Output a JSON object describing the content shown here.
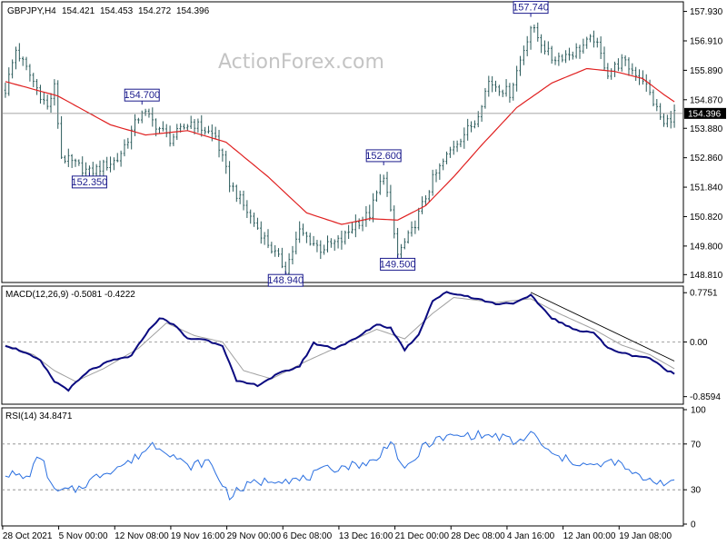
{
  "watermark": "ActionForex.com",
  "colors": {
    "candle": "#2a5a5a",
    "ma": "#e02020",
    "macd": "#0a0a80",
    "signal": "#a0a0a0",
    "rsi": "#2a6fe0",
    "annotation": "#1a1a8c",
    "trendline": "#000000",
    "grid": "#888888"
  },
  "chart_data": [
    {
      "type": "candlestick",
      "title": "GBPJPY,H4",
      "ohlc_header": [
        "154.421",
        "154.453",
        "154.272",
        "154.396"
      ],
      "current_price": 154.396,
      "current_price_label": "154.396",
      "ylim": [
        148.6,
        158.2
      ],
      "yticks": [
        148.81,
        149.8,
        150.82,
        151.84,
        152.86,
        153.88,
        154.87,
        155.89,
        156.91,
        157.93
      ],
      "ytick_labels": [
        "148.810",
        "149.800",
        "150.820",
        "151.840",
        "152.860",
        "153.880",
        "154.870",
        "155.890",
        "156.910",
        "157.930"
      ],
      "annotations": [
        {
          "label": "154.700",
          "value": 154.7,
          "bar": 39
        },
        {
          "label": "152.350",
          "value": 152.35,
          "bar": 24
        },
        {
          "label": "152.600",
          "value": 152.6,
          "bar": 108
        },
        {
          "label": "148.940",
          "value": 148.94,
          "bar": 80
        },
        {
          "label": "149.500",
          "value": 149.5,
          "bar": 112
        },
        {
          "label": "157.740",
          "value": 157.74,
          "bar": 150
        }
      ],
      "price_knots": [
        [
          0,
          155.2
        ],
        [
          3,
          156.6
        ],
        [
          8,
          155.5
        ],
        [
          12,
          154.6
        ],
        [
          14,
          155.3
        ],
        [
          16,
          152.9
        ],
        [
          24,
          152.35
        ],
        [
          32,
          152.8
        ],
        [
          39,
          154.5
        ],
        [
          47,
          153.5
        ],
        [
          53,
          154.1
        ],
        [
          60,
          153.6
        ],
        [
          64,
          152.0
        ],
        [
          70,
          150.8
        ],
        [
          76,
          149.7
        ],
        [
          80,
          149.0
        ],
        [
          84,
          150.3
        ],
        [
          90,
          149.7
        ],
        [
          96,
          150.0
        ],
        [
          100,
          150.6
        ],
        [
          104,
          150.9
        ],
        [
          108,
          152.3
        ],
        [
          111,
          150.2
        ],
        [
          112,
          149.5
        ],
        [
          116,
          150.3
        ],
        [
          122,
          152.1
        ],
        [
          128,
          153.3
        ],
        [
          134,
          154.1
        ],
        [
          138,
          155.5
        ],
        [
          144,
          155.1
        ],
        [
          150,
          157.4
        ],
        [
          156,
          156.3
        ],
        [
          162,
          156.5
        ],
        [
          168,
          157.0
        ],
        [
          172,
          155.8
        ],
        [
          176,
          156.2
        ],
        [
          182,
          155.6
        ],
        [
          188,
          154.0
        ],
        [
          191,
          154.4
        ]
      ],
      "ma_knots": [
        [
          0,
          155.5
        ],
        [
          15,
          155.0
        ],
        [
          30,
          154.0
        ],
        [
          40,
          153.65
        ],
        [
          52,
          153.8
        ],
        [
          63,
          153.4
        ],
        [
          75,
          152.2
        ],
        [
          86,
          150.95
        ],
        [
          96,
          150.55
        ],
        [
          104,
          150.75
        ],
        [
          112,
          150.7
        ],
        [
          120,
          151.2
        ],
        [
          128,
          152.2
        ],
        [
          136,
          153.3
        ],
        [
          146,
          154.6
        ],
        [
          156,
          155.45
        ],
        [
          166,
          155.95
        ],
        [
          174,
          155.85
        ],
        [
          182,
          155.6
        ],
        [
          188,
          155.05
        ],
        [
          191,
          154.8
        ]
      ],
      "series": [
        {
          "name": "GBPJPY,H4",
          "kind": "candles"
        },
        {
          "name": "",
          "kind": "moving-average"
        }
      ]
    },
    {
      "type": "line",
      "title": "MACD(12,26,9) -0.5081 -0.4222",
      "ylim": [
        -0.95,
        0.85
      ],
      "yticks": [
        0.7751,
        0.0,
        -0.8594
      ],
      "ytick_labels": [
        "0.7751",
        "0.00",
        "-0.8594"
      ],
      "macd_knots": [
        [
          0,
          -0.05
        ],
        [
          5,
          -0.15
        ],
        [
          10,
          -0.3
        ],
        [
          14,
          -0.62
        ],
        [
          18,
          -0.75
        ],
        [
          24,
          -0.45
        ],
        [
          30,
          -0.3
        ],
        [
          36,
          -0.22
        ],
        [
          40,
          0.12
        ],
        [
          44,
          0.38
        ],
        [
          48,
          0.28
        ],
        [
          52,
          0.05
        ],
        [
          56,
          0.05
        ],
        [
          62,
          -0.05
        ],
        [
          66,
          -0.62
        ],
        [
          72,
          -0.68
        ],
        [
          78,
          -0.5
        ],
        [
          84,
          -0.38
        ],
        [
          88,
          -0.02
        ],
        [
          94,
          -0.1
        ],
        [
          100,
          0.05
        ],
        [
          106,
          0.28
        ],
        [
          110,
          0.22
        ],
        [
          114,
          -0.12
        ],
        [
          118,
          0.12
        ],
        [
          122,
          0.65
        ],
        [
          126,
          0.78
        ],
        [
          132,
          0.72
        ],
        [
          140,
          0.6
        ],
        [
          146,
          0.62
        ],
        [
          150,
          0.73
        ],
        [
          156,
          0.38
        ],
        [
          162,
          0.2
        ],
        [
          168,
          0.15
        ],
        [
          172,
          -0.1
        ],
        [
          178,
          -0.2
        ],
        [
          184,
          -0.25
        ],
        [
          188,
          -0.42
        ],
        [
          191,
          -0.5
        ]
      ],
      "signal_knots": [
        [
          0,
          -0.05
        ],
        [
          8,
          -0.2
        ],
        [
          14,
          -0.45
        ],
        [
          20,
          -0.62
        ],
        [
          28,
          -0.42
        ],
        [
          38,
          -0.1
        ],
        [
          46,
          0.3
        ],
        [
          54,
          0.1
        ],
        [
          62,
          0.0
        ],
        [
          68,
          -0.45
        ],
        [
          76,
          -0.58
        ],
        [
          86,
          -0.3
        ],
        [
          96,
          -0.05
        ],
        [
          106,
          0.2
        ],
        [
          114,
          0.05
        ],
        [
          122,
          0.45
        ],
        [
          128,
          0.7
        ],
        [
          140,
          0.62
        ],
        [
          150,
          0.68
        ],
        [
          158,
          0.45
        ],
        [
          168,
          0.2
        ],
        [
          176,
          -0.05
        ],
        [
          184,
          -0.2
        ],
        [
          191,
          -0.42
        ]
      ],
      "trendline": [
        [
          150,
          0.78
        ],
        [
          191,
          -0.3
        ]
      ],
      "series": [
        {
          "name": "",
          "kind": "macd"
        },
        {
          "name": "",
          "kind": "signal"
        }
      ]
    },
    {
      "type": "line",
      "title": "RSI(14) 34.8471",
      "ylim": [
        0,
        100
      ],
      "yticks": [
        100,
        70,
        30,
        0
      ],
      "ytick_labels": [
        "100",
        "70",
        "30",
        "0"
      ],
      "levels": [
        70,
        30
      ],
      "rsi_knots": [
        [
          0,
          45
        ],
        [
          6,
          40
        ],
        [
          10,
          60
        ],
        [
          14,
          28
        ],
        [
          20,
          30
        ],
        [
          28,
          45
        ],
        [
          36,
          55
        ],
        [
          42,
          70
        ],
        [
          46,
          65
        ],
        [
          52,
          50
        ],
        [
          58,
          55
        ],
        [
          64,
          25
        ],
        [
          70,
          35
        ],
        [
          78,
          40
        ],
        [
          84,
          38
        ],
        [
          92,
          48
        ],
        [
          100,
          52
        ],
        [
          106,
          55
        ],
        [
          110,
          75
        ],
        [
          114,
          45
        ],
        [
          120,
          70
        ],
        [
          126,
          76
        ],
        [
          134,
          78
        ],
        [
          142,
          76
        ],
        [
          146,
          70
        ],
        [
          150,
          80
        ],
        [
          156,
          60
        ],
        [
          162,
          55
        ],
        [
          168,
          50
        ],
        [
          174,
          55
        ],
        [
          180,
          42
        ],
        [
          186,
          38
        ],
        [
          191,
          35
        ]
      ],
      "series": [
        {
          "name": "",
          "kind": "rsi"
        }
      ]
    }
  ],
  "x_axis": {
    "labels": [
      "28 Oct 2021",
      "5 Nov 00:00",
      "12 Nov 08:00",
      "19 Nov 16:00",
      "29 Nov 00:00",
      "6 Dec 08:00",
      "13 Dec 16:00",
      "21 Dec 00:00",
      "28 Dec 08:00",
      "4 Jan 16:00",
      "12 Jan 00:00",
      "19 Jan 08:00"
    ],
    "bars": [
      0,
      16,
      32,
      48,
      64,
      80,
      96,
      112,
      128,
      144,
      160,
      176
    ],
    "total_bars": 192
  }
}
